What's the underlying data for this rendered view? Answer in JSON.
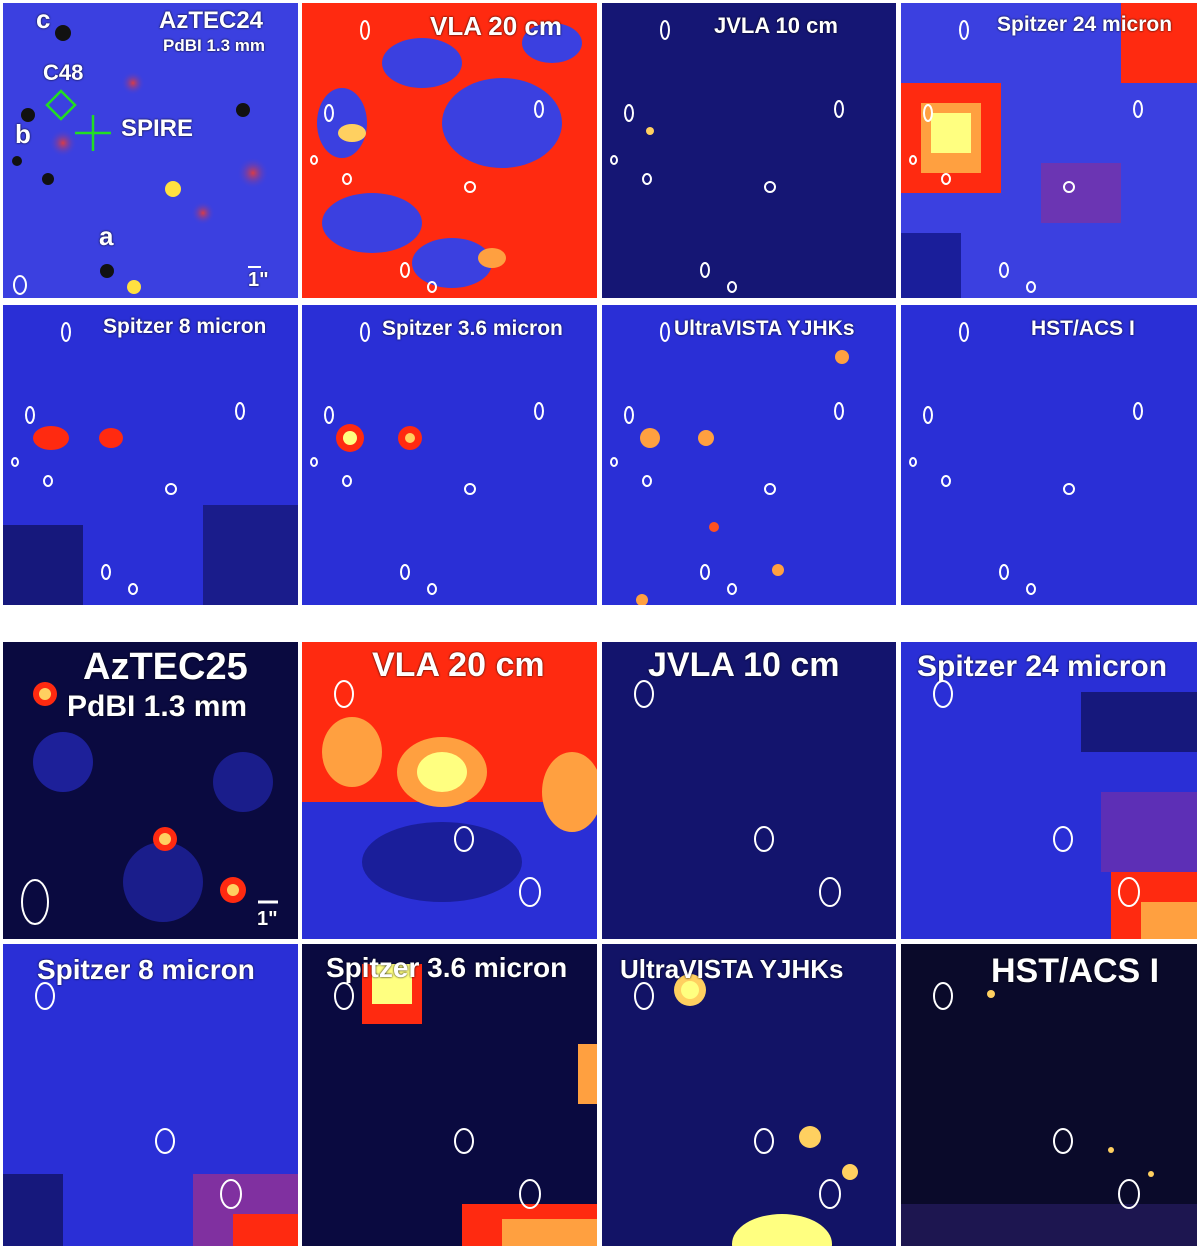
{
  "top_block": {
    "row1": [
      {
        "title": "AzTEC24",
        "subtitle": "PdBI 1.3 mm",
        "annotations": {
          "c": "c",
          "b": "b",
          "a": "a",
          "c48": "C48",
          "spire": "SPIRE",
          "scale": "1\""
        }
      },
      {
        "title": "VLA 20 cm"
      },
      {
        "title": "JVLA 10 cm"
      },
      {
        "title": "Spitzer 24 micron"
      }
    ],
    "row2": [
      {
        "title": "Spitzer 8 micron"
      },
      {
        "title": "Spitzer 3.6 micron"
      },
      {
        "title": "UltraVISTA YJHKs"
      },
      {
        "title": "HST/ACS I"
      }
    ]
  },
  "bottom_block": {
    "row1": [
      {
        "title": "AzTEC25",
        "subtitle": "PdBI 1.3 mm",
        "annotations": {
          "scale": "1\""
        }
      },
      {
        "title": "VLA 20 cm"
      },
      {
        "title": "JVLA 10 cm"
      },
      {
        "title": "Spitzer 24 micron"
      }
    ],
    "row2": [
      {
        "title": "Spitzer 8 micron"
      },
      {
        "title": "Spitzer 3.6 micron"
      },
      {
        "title": "UltraVISTA YJHKs"
      },
      {
        "title": "HST/ACS I"
      }
    ]
  },
  "colors": {
    "background_blue": "#2a2fd6",
    "deep_blue": "#1a1e9a",
    "red": "#ff2a10",
    "yellow": "#ffff80",
    "contour": "#ffffff",
    "marker_green": "#22dd22"
  }
}
